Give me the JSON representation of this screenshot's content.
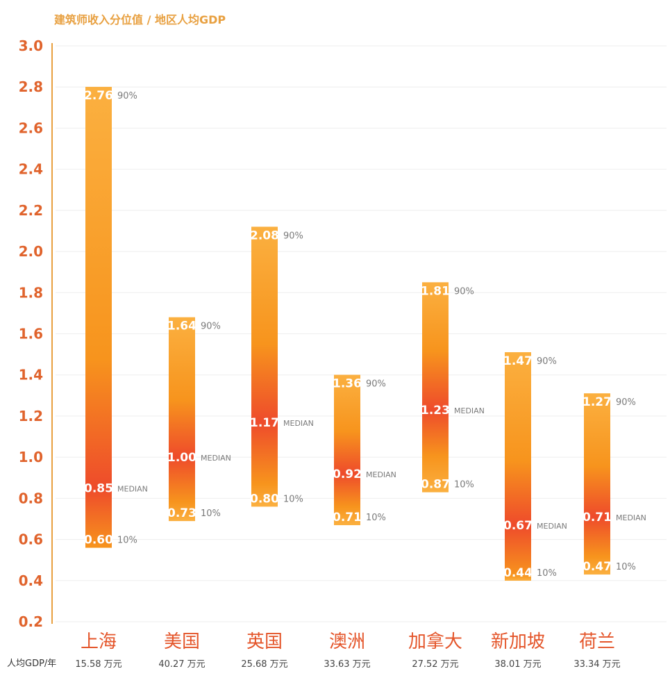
{
  "chart_data": {
    "type": "bar",
    "ylabel": "建筑师收入分位值 / 地区人均GDP",
    "ylim": [
      0.2,
      3.0
    ],
    "yticks": [
      "0.2",
      "0.4",
      "0.6",
      "0.8",
      "1.0",
      "1.2",
      "1.4",
      "1.6",
      "1.8",
      "2.0",
      "2.2",
      "2.4",
      "2.6",
      "2.8",
      "3.0"
    ],
    "gdp_row_label": "人均GDP/年",
    "percentile_labels": {
      "p90": "90%",
      "median": "MEDIAN",
      "p10": "10%"
    },
    "categories": [
      "上海",
      "美国",
      "英国",
      "澳洲",
      "加拿大",
      "新加坡",
      "荷兰"
    ],
    "gdp": [
      "15.58 万元",
      "40.27 万元",
      "25.68 万元",
      "33.63 万元",
      "27.52 万元",
      "38.01 万元",
      "33.34 万元"
    ],
    "series": [
      {
        "name": "90%",
        "values": [
          2.76,
          1.64,
          2.08,
          1.36,
          1.81,
          1.47,
          1.27
        ]
      },
      {
        "name": "MEDIAN",
        "values": [
          0.85,
          1.0,
          1.17,
          0.92,
          1.23,
          0.67,
          0.71
        ]
      },
      {
        "name": "10%",
        "values": [
          0.6,
          0.73,
          0.8,
          0.71,
          0.87,
          0.44,
          0.47
        ]
      }
    ],
    "colors": {
      "light": "#fbb040",
      "mid": "#f7941d",
      "dark": "#ee4b2b",
      "axis": "#e8a040",
      "grid": "#eeeeee"
    },
    "grid": true
  }
}
